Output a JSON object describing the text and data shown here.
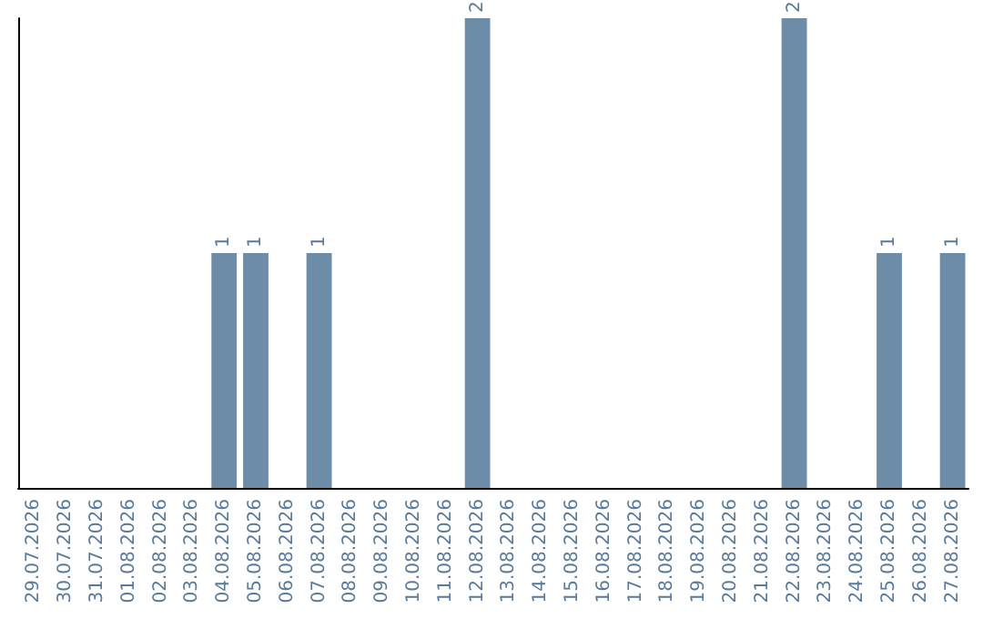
{
  "chart_data": {
    "type": "bar",
    "categories": [
      "29.07.2026",
      "30.07.2026",
      "31.07.2026",
      "01.08.2026",
      "02.08.2026",
      "03.08.2026",
      "04.08.2026",
      "05.08.2026",
      "06.08.2026",
      "07.08.2026",
      "08.08.2026",
      "09.08.2026",
      "10.08.2026",
      "11.08.2026",
      "12.08.2026",
      "13.08.2026",
      "14.08.2026",
      "15.08.2026",
      "16.08.2026",
      "17.08.2026",
      "18.08.2026",
      "19.08.2026",
      "20.08.2026",
      "21.08.2026",
      "22.08.2026",
      "23.08.2026",
      "24.08.2026",
      "25.08.2026",
      "26.08.2026",
      "27.08.2026"
    ],
    "values": [
      0,
      0,
      0,
      0,
      0,
      0,
      1,
      1,
      0,
      1,
      0,
      0,
      0,
      0,
      2,
      0,
      0,
      0,
      0,
      0,
      0,
      0,
      0,
      0,
      2,
      0,
      0,
      1,
      0,
      1
    ],
    "value_labels": [
      null,
      null,
      null,
      null,
      null,
      null,
      "1",
      "1",
      null,
      "1",
      null,
      null,
      null,
      null,
      "2",
      null,
      null,
      null,
      null,
      null,
      null,
      null,
      null,
      null,
      "2",
      null,
      null,
      "1",
      null,
      "1"
    ],
    "color": "#6d8ca8",
    "tick_labels": "x"
  }
}
